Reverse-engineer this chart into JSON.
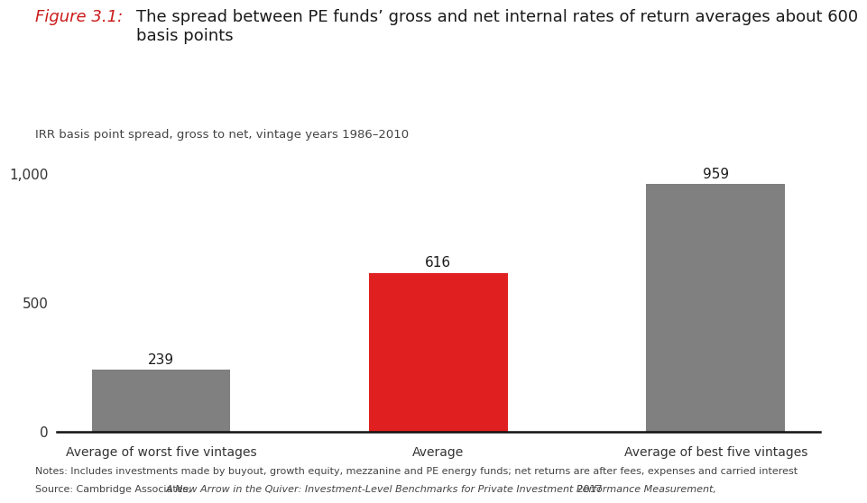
{
  "categories": [
    "Average of worst five vintages",
    "Average",
    "Average of best five vintages"
  ],
  "values": [
    239,
    616,
    959
  ],
  "bar_colors": [
    "#808080",
    "#e02020",
    "#808080"
  ],
  "ylim": [
    0,
    1100
  ],
  "yticks": [
    0,
    500,
    1000
  ],
  "ytick_labels": [
    "0",
    "500",
    "1,000"
  ],
  "subtitle": "IRR basis point spread, gross to net, vintage years 1986–2010",
  "figure_label": "Figure 3.1:",
  "figure_label_color": "#cc1a1a",
  "title_text": "The spread between PE funds’ gross and net internal rates of return averages about 600\nbasis points",
  "title_color": "#1a1a1a",
  "notes_line1": "Notes: Includes investments made by buyout, growth equity, mezzanine and PE energy funds; net returns are after fees, expenses and carried interest",
  "source_prefix": "Source: Cambridge Associates, ",
  "source_italic": "A New Arrow in the Quiver: Investment-Level Benchmarks for Private Investment Performance Measurement,",
  "source_suffix": " 2017",
  "background_color": "#ffffff",
  "bar_label_fontsize": 11,
  "xtick_fontsize": 10,
  "ytick_fontsize": 11,
  "subtitle_fontsize": 9.5,
  "title_fontsize": 13,
  "notes_fontsize": 8.0,
  "bar_width": 0.5
}
